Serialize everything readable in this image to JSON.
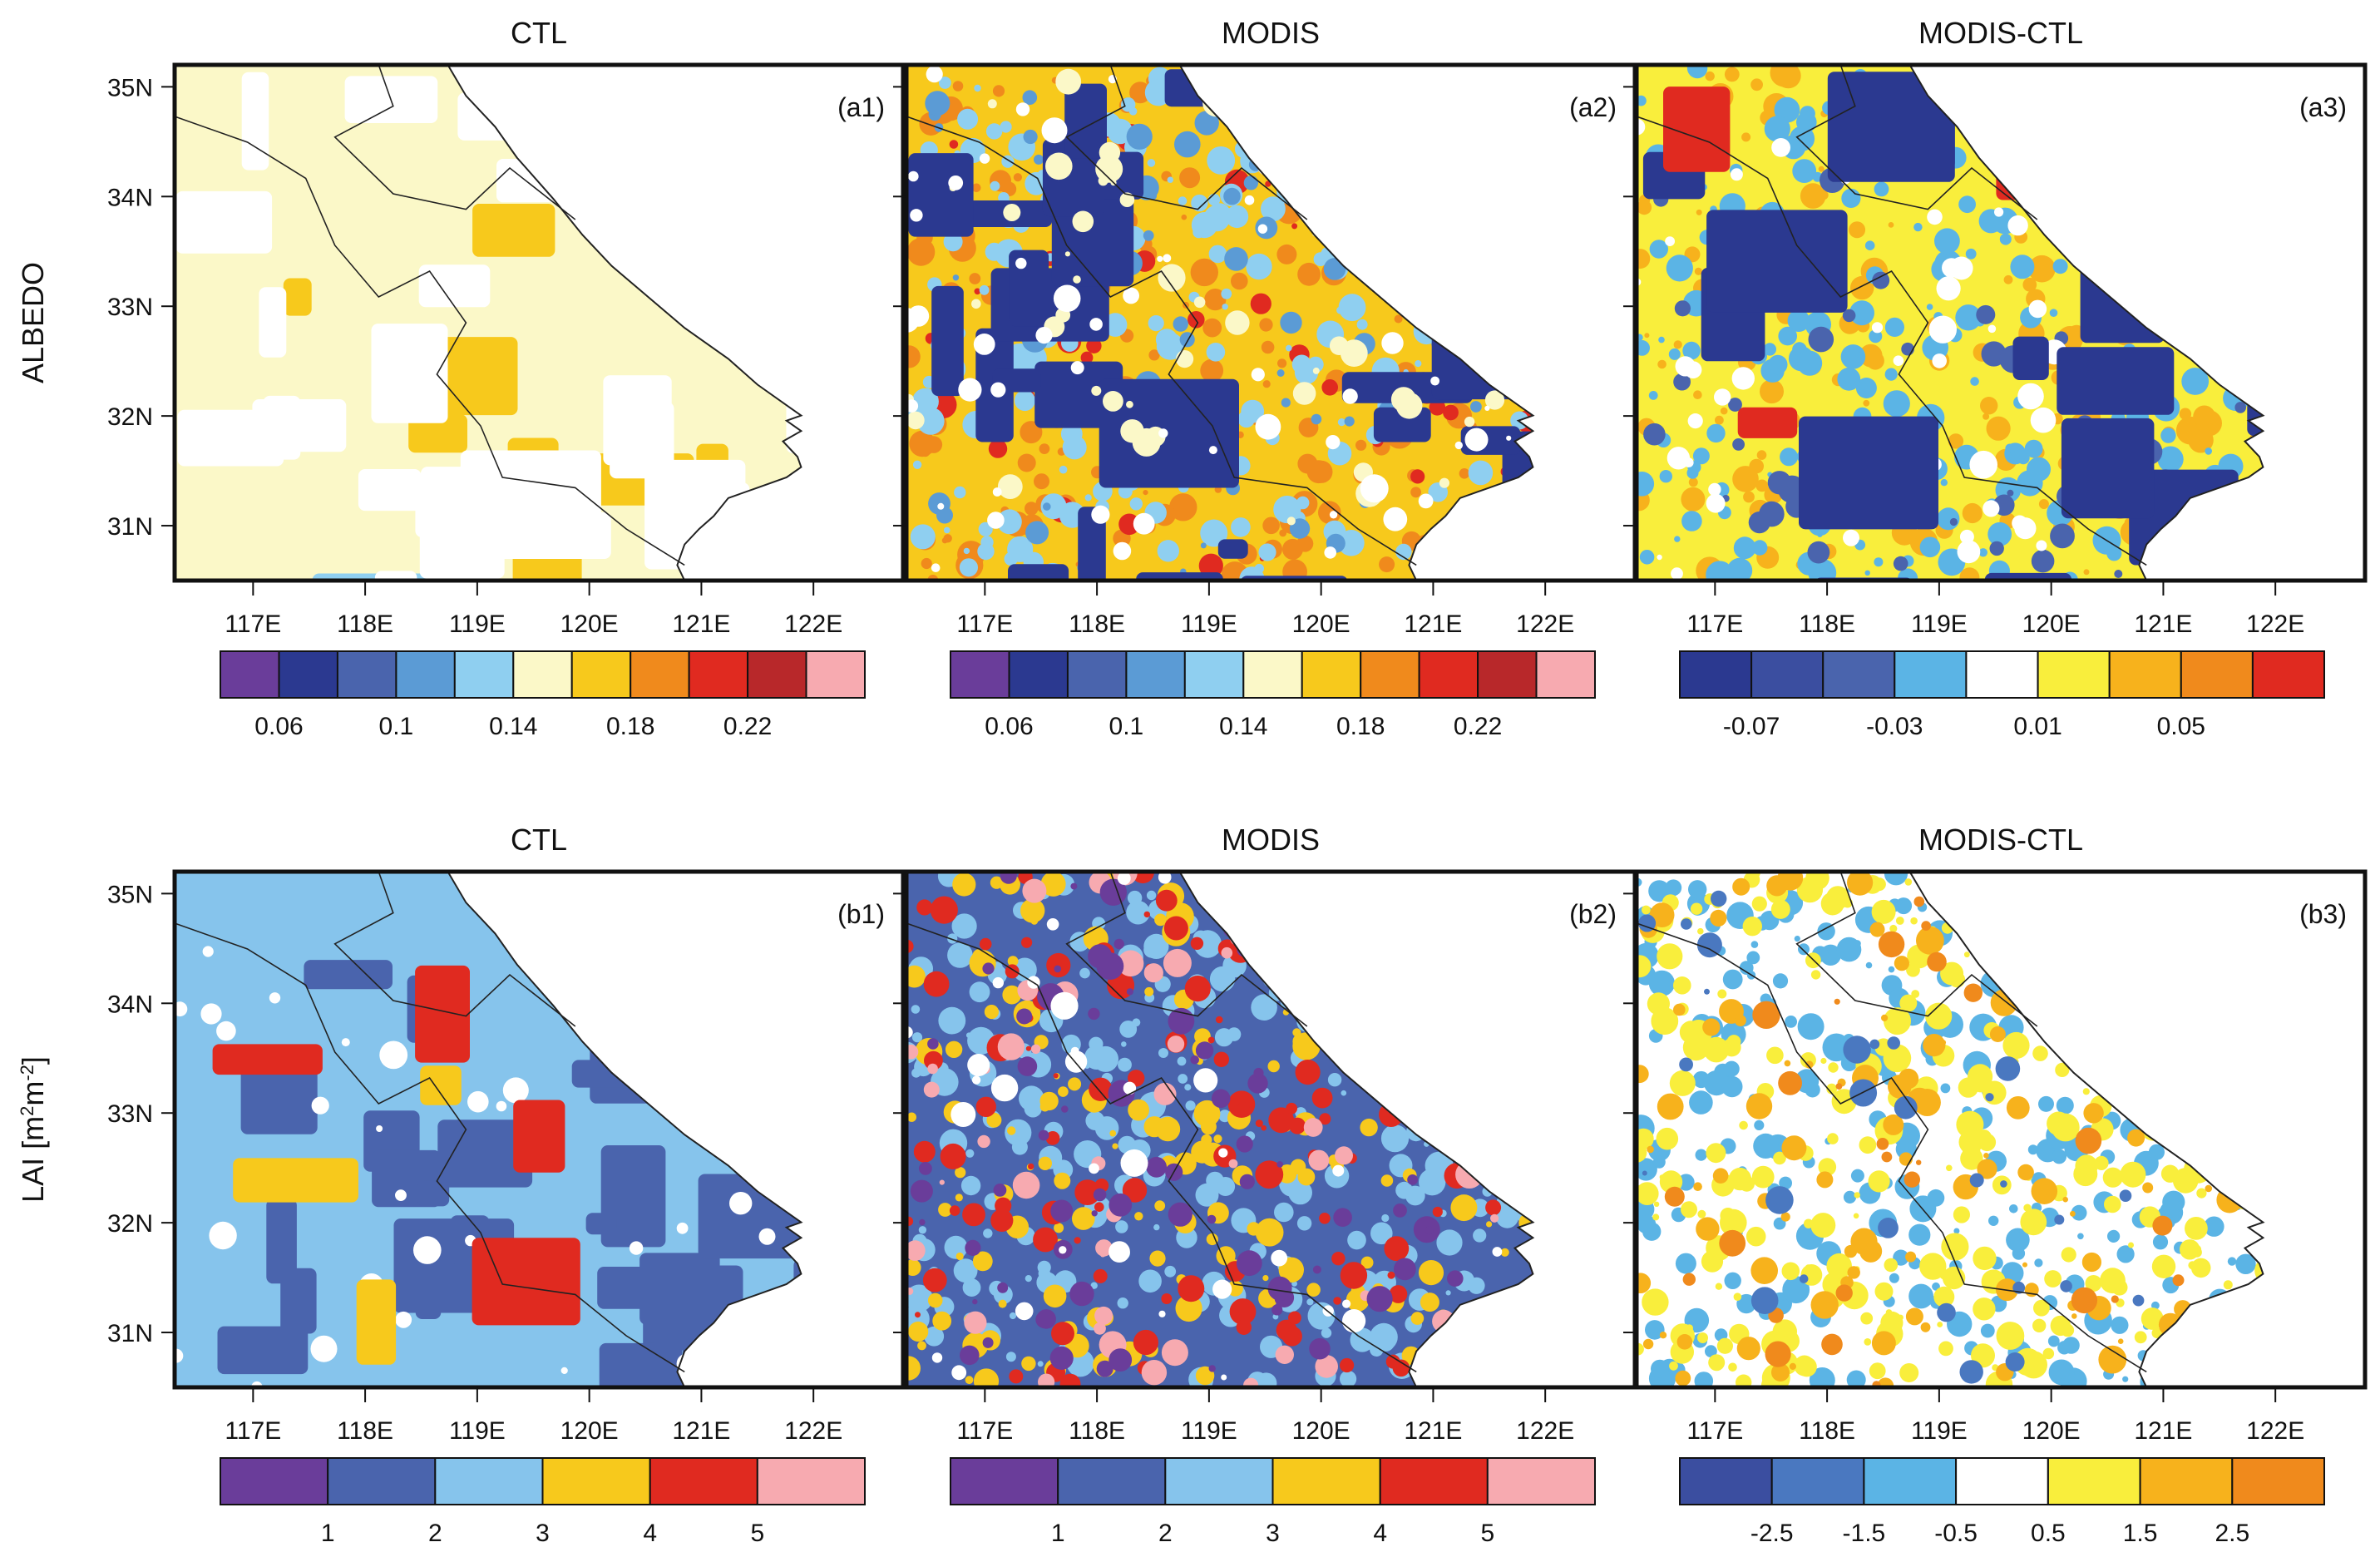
{
  "figure": {
    "rows": [
      {
        "row_label": "ALBEDO",
        "row_label_base": "ALBEDO",
        "panels": [
          {
            "id": "a1",
            "title": "CTL",
            "tag": "(a1)",
            "palette": "albedo",
            "field": "ctl_albedo"
          },
          {
            "id": "a2",
            "title": "MODIS",
            "tag": "(a2)",
            "palette": "albedo",
            "field": "modis_albedo"
          },
          {
            "id": "a3",
            "title": "MODIS-CTL",
            "tag": "(a3)",
            "palette": "albedo_diff",
            "field": "diff_albedo"
          }
        ]
      },
      {
        "row_label": "LAI [m2m-2]",
        "row_label_base": "LAI [m",
        "row_label_sup1": "2",
        "row_label_mid": "m",
        "row_label_sup2": "-2",
        "row_label_end": "]",
        "panels": [
          {
            "id": "b1",
            "title": "CTL",
            "tag": "(b1)",
            "palette": "lai",
            "field": "ctl_lai"
          },
          {
            "id": "b2",
            "title": "MODIS",
            "tag": "(b2)",
            "palette": "lai",
            "field": "modis_lai"
          },
          {
            "id": "b3",
            "title": "MODIS-CTL",
            "tag": "(b3)",
            "palette": "lai_diff",
            "field": "diff_lai"
          }
        ]
      }
    ]
  },
  "chart_data": {
    "type": "heatmap",
    "x_axis": {
      "ticks": [
        117,
        118,
        119,
        120,
        121,
        122
      ],
      "tick_labels": [
        "117E",
        "118E",
        "119E",
        "120E",
        "121E",
        "122E"
      ],
      "range": [
        116.3,
        122.8
      ]
    },
    "y_axis": {
      "ticks": [
        31,
        32,
        33,
        34,
        35
      ],
      "tick_labels": [
        "31N",
        "32N",
        "33N",
        "34N",
        "35N"
      ],
      "range": [
        30.5,
        35.2
      ]
    },
    "colorbars": {
      "albedo": {
        "colors": [
          "#6a3d9a",
          "#2b3990",
          "#4a64ad",
          "#5b9bd5",
          "#8fcff0",
          "#fbf8c8",
          "#f7c91c",
          "#f08a1c",
          "#e02a20",
          "#b8282a",
          "#f7aab0"
        ],
        "labels": [
          "0.06",
          "0.1",
          "0.14",
          "0.18",
          "0.22"
        ],
        "label_after_box": [
          1,
          3,
          5,
          7,
          9
        ]
      },
      "albedo_diff": {
        "colors": [
          "#2b3990",
          "#3b4ea0",
          "#4a64ad",
          "#5bb4e5",
          "#ffffff",
          "#f9ee3c",
          "#f7b21c",
          "#f08a1c",
          "#e02a20"
        ],
        "labels": [
          "-0.07",
          "-0.03",
          "0.01",
          "0.05"
        ],
        "label_after_box": [
          1,
          3,
          5,
          7
        ]
      },
      "lai": {
        "colors": [
          "#6a3d9a",
          "#4a64ad",
          "#86c4ec",
          "#f7c91c",
          "#e02a20",
          "#f7aab0"
        ],
        "labels": [
          "1",
          "2",
          "3",
          "4",
          "5"
        ],
        "label_after_box": [
          1,
          2,
          3,
          4,
          5
        ]
      },
      "lai_diff": {
        "colors": [
          "#3b4ea0",
          "#4a78c0",
          "#5bb4e5",
          "#ffffff",
          "#f9ee3c",
          "#f7b21c",
          "#f08a1c"
        ],
        "labels": [
          "-2.5",
          "-1.5",
          "-0.5",
          "0.5",
          "1.5",
          "2.5"
        ],
        "label_after_box": [
          1,
          2,
          3,
          4,
          5,
          6
        ]
      }
    },
    "fields": {
      "ctl_albedo": {
        "bg": "#fbf8c8",
        "colors": [
          "#f7c91c",
          "#f7c91c",
          "#8fcff0",
          "#e02a20",
          "#ffffff"
        ],
        "n": [
          8,
          4,
          5,
          1,
          28
        ]
      },
      "modis_albedo": {
        "bg": "#f7c91c",
        "colors": [
          "#f08a1c",
          "#e02a20",
          "#8fcff0",
          "#5b9bd5",
          "#2b3990",
          "#fbf8c8",
          "#ffffff"
        ],
        "n": [
          180,
          50,
          240,
          80,
          30,
          60,
          60
        ]
      },
      "diff_albedo": {
        "bg": "#f9ee3c",
        "colors": [
          "#f7b21c",
          "#5bb4e5",
          "#4a64ad",
          "#ffffff",
          "#2b3990",
          "#e02a20"
        ],
        "n": [
          200,
          260,
          60,
          80,
          20,
          4
        ]
      },
      "ctl_lai": {
        "bg": "#86c4ec",
        "colors": [
          "#4a64ad",
          "#ffffff",
          "#f7c91c",
          "#e02a20"
        ],
        "n": [
          30,
          40,
          6,
          4
        ]
      },
      "modis_lai": {
        "bg": "#4a64ad",
        "colors": [
          "#86c4ec",
          "#f7c91c",
          "#e02a20",
          "#f7aab0",
          "#6a3d9a",
          "#ffffff"
        ],
        "n": [
          300,
          180,
          120,
          60,
          80,
          50
        ]
      },
      "diff_lai": {
        "bg": "#ffffff",
        "colors": [
          "#5bb4e5",
          "#f9ee3c",
          "#f7b21c",
          "#f08a1c",
          "#4a78c0"
        ],
        "n": [
          320,
          300,
          120,
          40,
          40
        ]
      }
    }
  }
}
